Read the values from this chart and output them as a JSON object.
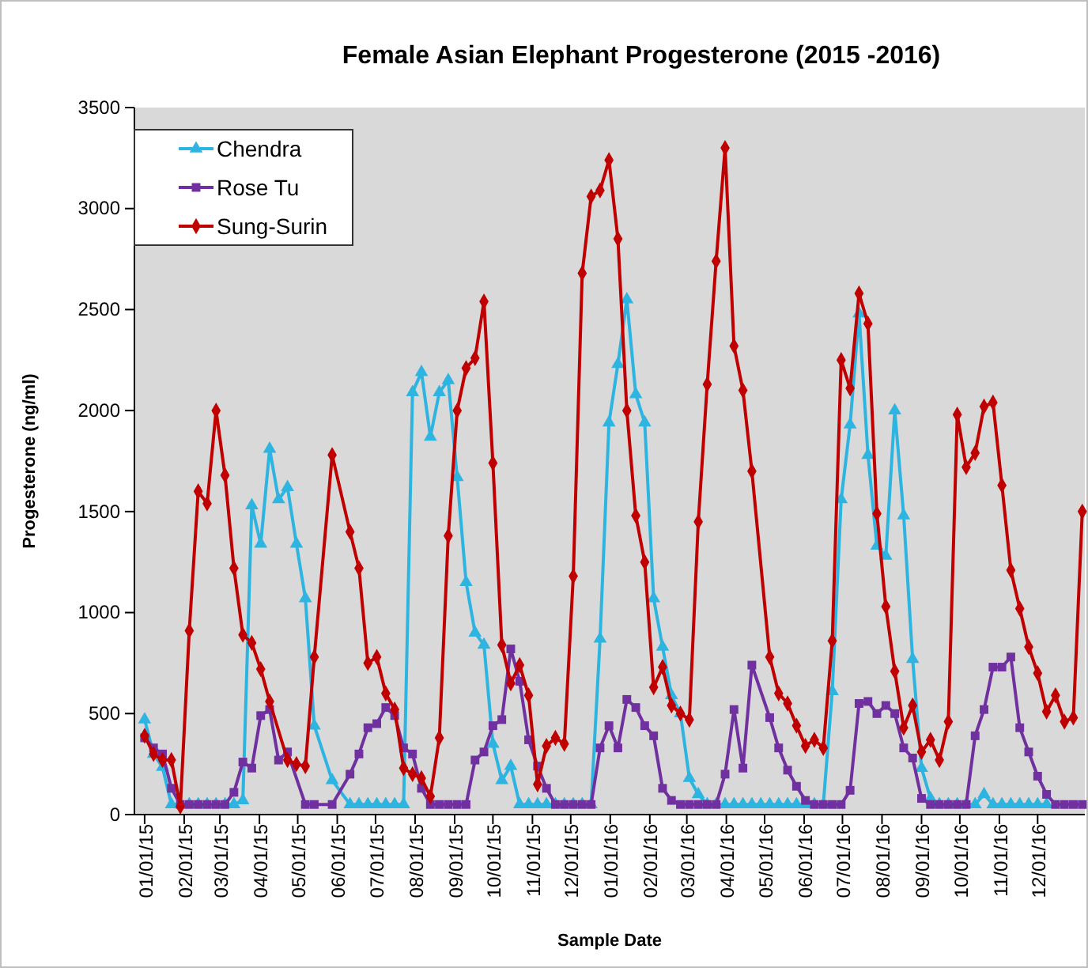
{
  "chart_data": {
    "type": "line",
    "title": "Female Asian Elephant Progesterone (2015 -2016)",
    "xlabel": "Sample Date",
    "ylabel": "Progesterone (ng/ml)",
    "xlim": [
      "2014-12-24",
      "2017-01-07"
    ],
    "ylim": [
      0,
      3500
    ],
    "yticks": [
      0,
      500,
      1000,
      1500,
      2000,
      2500,
      3000,
      3500
    ],
    "xticks": [
      {
        "value": "2015-01-01",
        "label": "01/01/15"
      },
      {
        "value": "2015-02-01",
        "label": "02/01/15"
      },
      {
        "value": "2015-03-01",
        "label": "03/01/15"
      },
      {
        "value": "2015-04-01",
        "label": "04/01/15"
      },
      {
        "value": "2015-05-01",
        "label": "05/01/15"
      },
      {
        "value": "2015-06-01",
        "label": "06/01/15"
      },
      {
        "value": "2015-07-01",
        "label": "07/01/15"
      },
      {
        "value": "2015-08-01",
        "label": "08/01/15"
      },
      {
        "value": "2015-09-01",
        "label": "09/01/15"
      },
      {
        "value": "2015-10-01",
        "label": "10/01/15"
      },
      {
        "value": "2015-11-01",
        "label": "11/01/15"
      },
      {
        "value": "2015-12-01",
        "label": "12/01/15"
      },
      {
        "value": "2016-01-01",
        "label": "01/01/16"
      },
      {
        "value": "2016-02-01",
        "label": "02/01/16"
      },
      {
        "value": "2016-03-01",
        "label": "03/01/16"
      },
      {
        "value": "2016-04-01",
        "label": "04/01/16"
      },
      {
        "value": "2016-05-01",
        "label": "05/01/16"
      },
      {
        "value": "2016-06-01",
        "label": "06/01/16"
      },
      {
        "value": "2016-07-01",
        "label": "07/01/16"
      },
      {
        "value": "2016-08-01",
        "label": "08/01/16"
      },
      {
        "value": "2016-09-01",
        "label": "09/01/16"
      },
      {
        "value": "2016-10-01",
        "label": "10/01/16"
      },
      {
        "value": "2016-11-01",
        "label": "11/01/16"
      },
      {
        "value": "2016-12-01",
        "label": "12/01/16"
      }
    ],
    "grid": false,
    "legend": "top left",
    "series": [
      {
        "name": "Chendra",
        "color": "#2eb4e0",
        "marker": "triangle",
        "x": [
          "2015-01-01",
          "2015-01-08",
          "2015-01-15",
          "2015-01-22",
          "2015-01-29",
          "2015-02-05",
          "2015-02-12",
          "2015-02-19",
          "2015-02-26",
          "2015-03-05",
          "2015-03-12",
          "2015-03-19",
          "2015-03-26",
          "2015-04-02",
          "2015-04-09",
          "2015-04-16",
          "2015-04-23",
          "2015-04-30",
          "2015-05-07",
          "2015-05-14",
          "2015-05-28",
          "2015-06-11",
          "2015-06-18",
          "2015-06-25",
          "2015-07-02",
          "2015-07-09",
          "2015-07-16",
          "2015-07-23",
          "2015-07-30",
          "2015-08-06",
          "2015-08-13",
          "2015-08-20",
          "2015-08-27",
          "2015-09-03",
          "2015-09-10",
          "2015-09-17",
          "2015-09-24",
          "2015-10-01",
          "2015-10-08",
          "2015-10-15",
          "2015-10-22",
          "2015-10-29",
          "2015-11-05",
          "2015-11-12",
          "2015-11-19",
          "2015-11-26",
          "2015-12-03",
          "2015-12-10",
          "2015-12-17",
          "2015-12-24",
          "2015-12-31",
          "2016-01-07",
          "2016-01-14",
          "2016-01-21",
          "2016-01-28",
          "2016-02-04",
          "2016-02-11",
          "2016-02-18",
          "2016-02-25",
          "2016-03-03",
          "2016-03-10",
          "2016-03-17",
          "2016-03-24",
          "2016-03-31",
          "2016-04-07",
          "2016-04-14",
          "2016-04-21",
          "2016-04-28",
          "2016-05-05",
          "2016-05-12",
          "2016-05-19",
          "2016-05-26",
          "2016-06-02",
          "2016-06-09",
          "2016-06-16",
          "2016-06-23",
          "2016-06-30",
          "2016-07-07",
          "2016-07-14",
          "2016-07-21",
          "2016-07-28",
          "2016-08-04",
          "2016-08-11",
          "2016-08-18",
          "2016-08-25",
          "2016-09-01",
          "2016-09-08",
          "2016-09-15",
          "2016-09-22",
          "2016-09-29",
          "2016-10-06",
          "2016-10-13",
          "2016-10-20",
          "2016-10-27",
          "2016-11-03",
          "2016-11-10",
          "2016-11-17",
          "2016-11-24",
          "2016-12-01",
          "2016-12-08"
        ],
        "values": [
          470,
          300,
          235,
          50,
          50,
          50,
          50,
          50,
          50,
          50,
          50,
          70,
          1530,
          1340,
          1810,
          1560,
          1620,
          1340,
          1070,
          440,
          170,
          50,
          50,
          50,
          50,
          50,
          50,
          50,
          2090,
          2190,
          1870,
          2090,
          2150,
          1670,
          1150,
          900,
          840,
          350,
          170,
          240,
          50,
          50,
          50,
          50,
          50,
          50,
          50,
          50,
          50,
          870,
          1940,
          2230,
          2550,
          2080,
          1940,
          1070,
          830,
          590,
          500,
          180,
          100,
          50,
          50,
          50,
          50,
          50,
          50,
          50,
          50,
          50,
          50,
          50,
          50,
          50,
          50,
          610,
          1560,
          1930,
          2480,
          1780,
          1330,
          1280,
          2000,
          1480,
          770,
          230,
          80,
          50,
          50,
          50,
          50,
          50,
          100,
          50,
          50,
          50,
          50,
          50,
          50,
          50
        ]
      },
      {
        "name": "Rose Tu",
        "color": "#7030a0",
        "marker": "square",
        "x": [
          "2015-01-01",
          "2015-01-08",
          "2015-01-15",
          "2015-01-22",
          "2015-01-29",
          "2015-02-05",
          "2015-02-12",
          "2015-02-19",
          "2015-02-26",
          "2015-03-05",
          "2015-03-12",
          "2015-03-19",
          "2015-03-26",
          "2015-04-02",
          "2015-04-09",
          "2015-04-16",
          "2015-04-23",
          "2015-05-07",
          "2015-05-14",
          "2015-05-28",
          "2015-06-11",
          "2015-06-18",
          "2015-06-25",
          "2015-07-02",
          "2015-07-09",
          "2015-07-16",
          "2015-07-23",
          "2015-07-30",
          "2015-08-06",
          "2015-08-13",
          "2015-08-20",
          "2015-08-27",
          "2015-09-03",
          "2015-09-10",
          "2015-09-17",
          "2015-09-24",
          "2015-10-01",
          "2015-10-08",
          "2015-10-15",
          "2015-10-22",
          "2015-10-29",
          "2015-11-05",
          "2015-11-12",
          "2015-11-19",
          "2015-11-26",
          "2015-12-03",
          "2015-12-10",
          "2015-12-17",
          "2015-12-24",
          "2015-12-31",
          "2016-01-07",
          "2016-01-14",
          "2016-01-21",
          "2016-01-28",
          "2016-02-04",
          "2016-02-11",
          "2016-02-18",
          "2016-02-25",
          "2016-03-03",
          "2016-03-10",
          "2016-03-17",
          "2016-03-24",
          "2016-03-31",
          "2016-04-07",
          "2016-04-14",
          "2016-04-21",
          "2016-05-05",
          "2016-05-12",
          "2016-05-19",
          "2016-05-26",
          "2016-06-02",
          "2016-06-09",
          "2016-06-16",
          "2016-06-23",
          "2016-06-30",
          "2016-07-07",
          "2016-07-14",
          "2016-07-21",
          "2016-07-28",
          "2016-08-04",
          "2016-08-11",
          "2016-08-18",
          "2016-08-25",
          "2016-09-01",
          "2016-09-08",
          "2016-09-15",
          "2016-09-22",
          "2016-09-29",
          "2016-10-06",
          "2016-10-13",
          "2016-10-20",
          "2016-10-27",
          "2016-11-03",
          "2016-11-10",
          "2016-11-17",
          "2016-11-24",
          "2016-12-01",
          "2016-12-08",
          "2016-12-15",
          "2016-12-22",
          "2016-12-29",
          "2017-01-05"
        ],
        "values": [
          380,
          330,
          300,
          130,
          50,
          50,
          50,
          50,
          50,
          50,
          110,
          260,
          230,
          490,
          520,
          270,
          310,
          50,
          50,
          50,
          200,
          300,
          430,
          450,
          530,
          490,
          330,
          300,
          130,
          50,
          50,
          50,
          50,
          50,
          270,
          310,
          440,
          470,
          820,
          660,
          370,
          240,
          130,
          50,
          50,
          50,
          50,
          50,
          330,
          440,
          330,
          570,
          530,
          440,
          390,
          130,
          70,
          50,
          50,
          50,
          50,
          50,
          200,
          520,
          230,
          740,
          480,
          330,
          220,
          140,
          70,
          50,
          50,
          50,
          50,
          120,
          550,
          560,
          500,
          540,
          500,
          330,
          280,
          80,
          50,
          50,
          50,
          50,
          50,
          390,
          520,
          730,
          730,
          780,
          430,
          310,
          190,
          100,
          50,
          50,
          50,
          50
        ]
      },
      {
        "name": "Sung-Surin",
        "color": "#c00000",
        "marker": "diamond",
        "x": [
          "2015-01-01",
          "2015-01-08",
          "2015-01-15",
          "2015-01-22",
          "2015-01-29",
          "2015-02-05",
          "2015-02-12",
          "2015-02-19",
          "2015-02-26",
          "2015-03-05",
          "2015-03-12",
          "2015-03-19",
          "2015-03-26",
          "2015-04-02",
          "2015-04-09",
          "2015-04-23",
          "2015-04-30",
          "2015-05-07",
          "2015-05-14",
          "2015-05-28",
          "2015-06-11",
          "2015-06-18",
          "2015-06-25",
          "2015-07-02",
          "2015-07-09",
          "2015-07-16",
          "2015-07-23",
          "2015-07-30",
          "2015-08-06",
          "2015-08-13",
          "2015-08-20",
          "2015-08-27",
          "2015-09-03",
          "2015-09-10",
          "2015-09-17",
          "2015-09-24",
          "2015-10-01",
          "2015-10-08",
          "2015-10-15",
          "2015-10-22",
          "2015-10-29",
          "2015-11-05",
          "2015-11-12",
          "2015-11-19",
          "2015-11-26",
          "2015-12-03",
          "2015-12-10",
          "2015-12-17",
          "2015-12-24",
          "2015-12-31",
          "2016-01-07",
          "2016-01-14",
          "2016-01-21",
          "2016-01-28",
          "2016-02-04",
          "2016-02-11",
          "2016-02-18",
          "2016-02-25",
          "2016-03-03",
          "2016-03-10",
          "2016-03-17",
          "2016-03-24",
          "2016-03-31",
          "2016-04-07",
          "2016-04-14",
          "2016-04-21",
          "2016-05-05",
          "2016-05-12",
          "2016-05-19",
          "2016-05-26",
          "2016-06-02",
          "2016-06-09",
          "2016-06-16",
          "2016-06-23",
          "2016-06-30",
          "2016-07-07",
          "2016-07-14",
          "2016-07-21",
          "2016-07-28",
          "2016-08-04",
          "2016-08-11",
          "2016-08-18",
          "2016-08-25",
          "2016-09-01",
          "2016-09-08",
          "2016-09-15",
          "2016-09-22",
          "2016-09-29",
          "2016-10-06",
          "2016-10-13",
          "2016-10-20",
          "2016-10-27",
          "2016-11-03",
          "2016-11-10",
          "2016-11-17",
          "2016-11-24",
          "2016-12-01",
          "2016-12-08",
          "2016-12-15",
          "2016-12-22",
          "2016-12-29",
          "2017-01-05"
        ],
        "values": [
          390,
          300,
          270,
          270,
          40,
          910,
          1600,
          1540,
          2000,
          1680,
          1220,
          890,
          850,
          720,
          560,
          270,
          250,
          240,
          780,
          1780,
          1400,
          1220,
          750,
          780,
          600,
          520,
          230,
          200,
          180,
          90,
          380,
          1380,
          2000,
          2210,
          2260,
          2540,
          1740,
          840,
          650,
          740,
          590,
          150,
          340,
          380,
          350,
          1180,
          2680,
          3060,
          3090,
          3240,
          2850,
          2000,
          1480,
          1250,
          630,
          730,
          540,
          500,
          470,
          1450,
          2130,
          2740,
          3300,
          2320,
          2100,
          1700,
          780,
          600,
          550,
          440,
          340,
          370,
          330,
          860,
          2250,
          2110,
          2580,
          2430,
          1490,
          1030,
          710,
          430,
          540,
          310,
          370,
          270,
          460,
          1980,
          1720,
          1790,
          2020,
          2040,
          1630,
          1210,
          1020,
          830,
          700,
          510,
          590,
          460,
          480,
          1500
        ]
      }
    ]
  }
}
